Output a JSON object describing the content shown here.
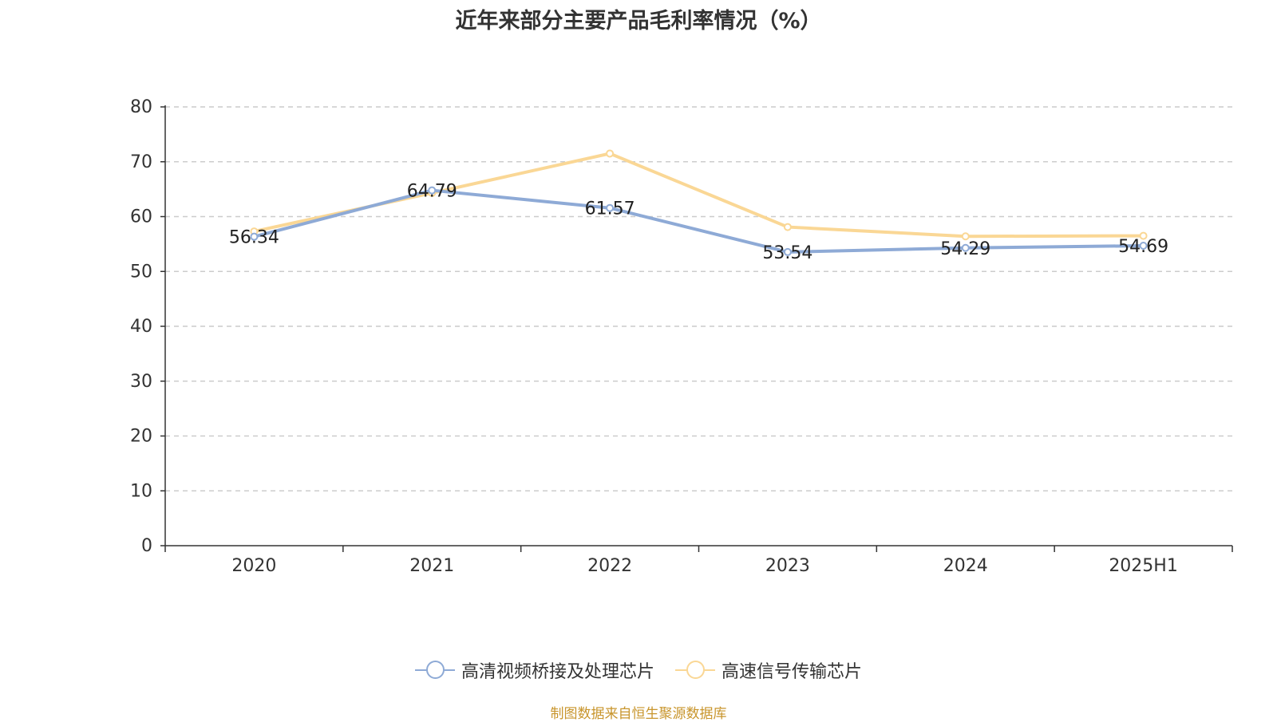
{
  "chart_data": {
    "type": "line",
    "title": "近年来部分主要产品毛利率情况（%）",
    "categories": [
      "2020",
      "2021",
      "2022",
      "2023",
      "2024",
      "2025H1"
    ],
    "ylim": [
      0,
      80
    ],
    "yticks": [
      0,
      10,
      20,
      30,
      40,
      50,
      60,
      70,
      80
    ],
    "grid": true,
    "legend_position": "bottom",
    "series": [
      {
        "name": "高清视频桥接及处理芯片",
        "color": "#8eaad6",
        "values": [
          56.34,
          64.79,
          61.57,
          53.54,
          54.29,
          54.69
        ],
        "data_labels": [
          "56.34",
          "64.79",
          "61.57",
          "53.54",
          "54.29",
          "54.69"
        ]
      },
      {
        "name": "高速信号传输芯片",
        "color": "#fad795",
        "values": [
          57.3,
          64.3,
          71.5,
          58.1,
          56.4,
          56.5
        ],
        "data_labels": []
      }
    ]
  },
  "source_note": "制图数据来自恒生聚源数据库"
}
